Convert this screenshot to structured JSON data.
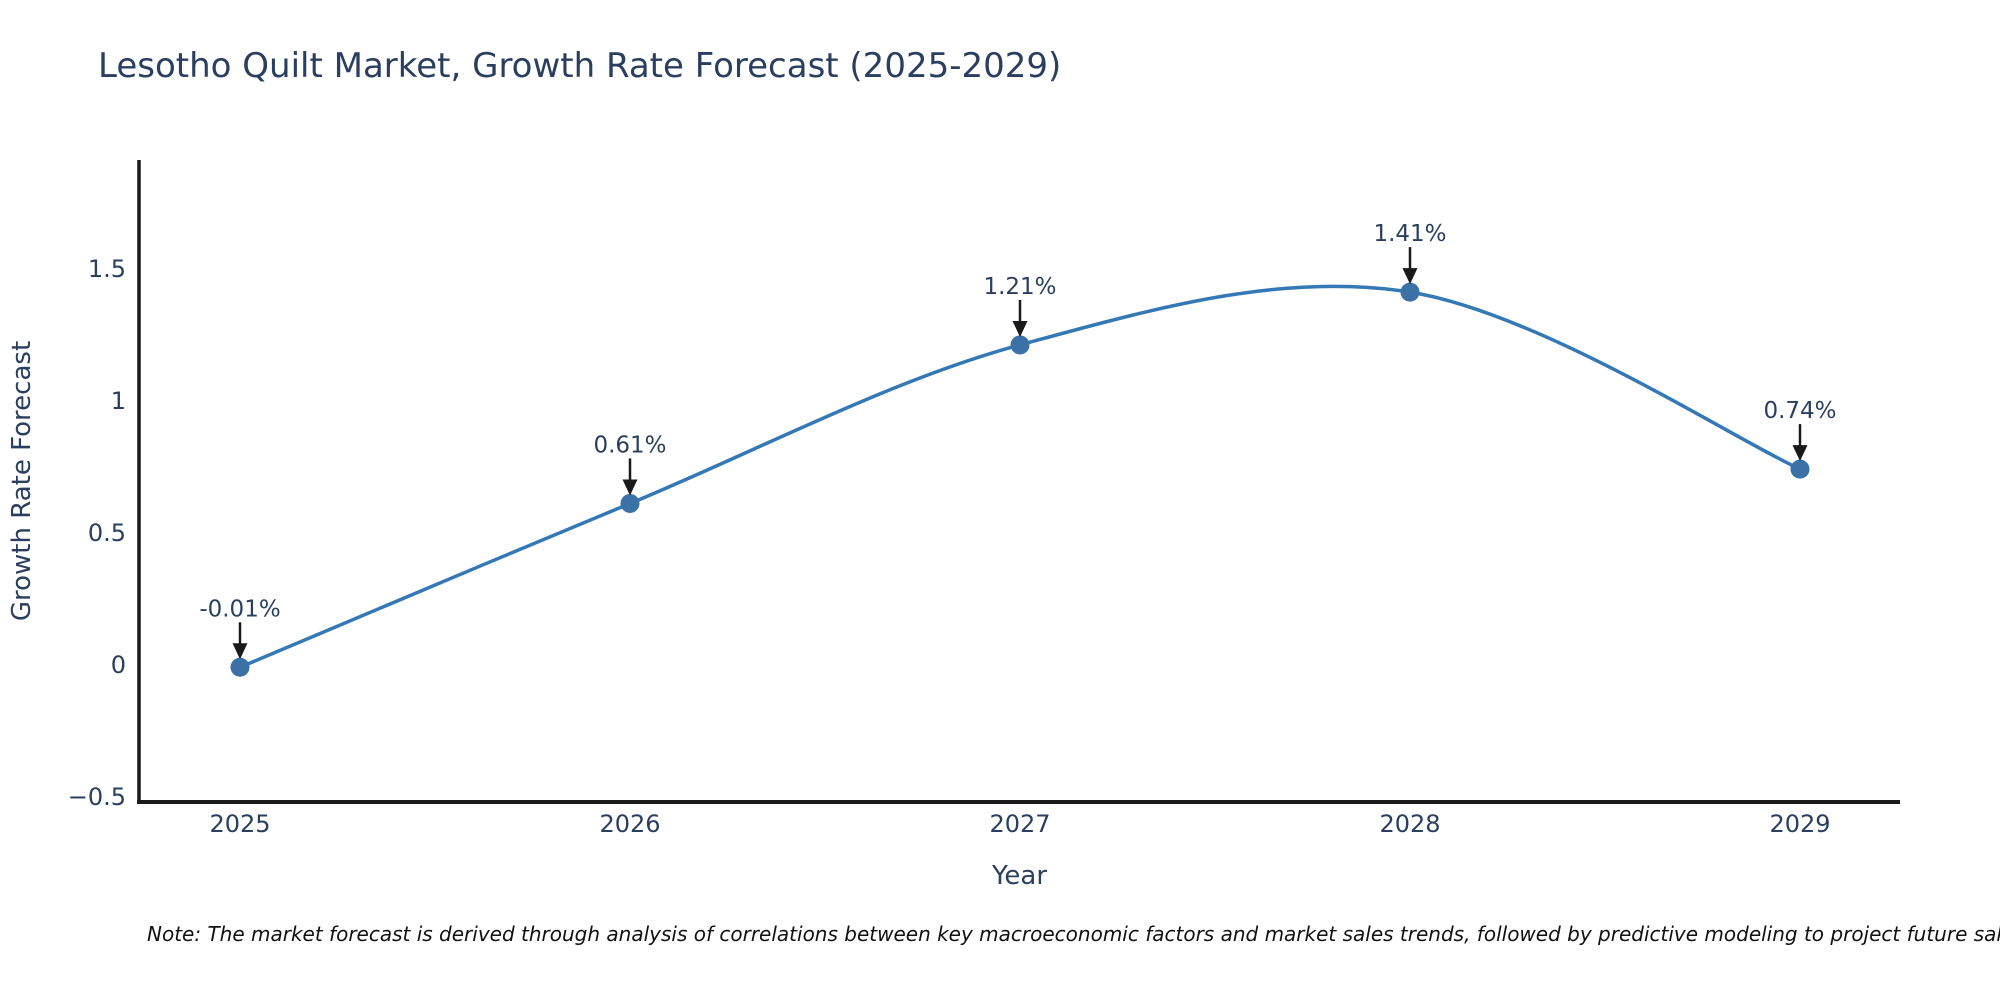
{
  "header": {
    "title": "Lesotho Quilt Market, Growth Rate Forecast (2025-2029)"
  },
  "chart_data": {
    "type": "line",
    "line_shape": "spline",
    "title": "Lesotho Quilt Market, Growth Rate Forecast (2025-2029)",
    "xlabel": "Year",
    "ylabel": "Growth Rate Forecast",
    "categories": [
      "2025",
      "2026",
      "2027",
      "2028",
      "2029"
    ],
    "values": [
      -0.01,
      0.61,
      1.21,
      1.41,
      0.74
    ],
    "point_labels": [
      "-0.01%",
      "0.61%",
      "1.21%",
      "1.41%",
      "0.74%"
    ],
    "y_ticks": [
      {
        "v": -0.5,
        "label": "−0.5"
      },
      {
        "v": 0,
        "label": "0"
      },
      {
        "v": 0.5,
        "label": "0.5"
      },
      {
        "v": 1,
        "label": "1"
      },
      {
        "v": 1.5,
        "label": "1.5"
      }
    ],
    "ylim": [
      -0.52,
      1.91
    ],
    "grid": false,
    "legend": "none",
    "markers": true,
    "annotation_arrows": true,
    "colors": {
      "line": "#3478b5",
      "marker": "#3a72a8",
      "text": "#2a3f5f",
      "axis": "#1a1a1a",
      "arrow": "#1a1a1a"
    }
  },
  "footer": {
    "note": "Note: The market forecast is derived through analysis of correlations between key macroeconomic factors and market sales trends, followed by predictive modeling to project future sal"
  }
}
